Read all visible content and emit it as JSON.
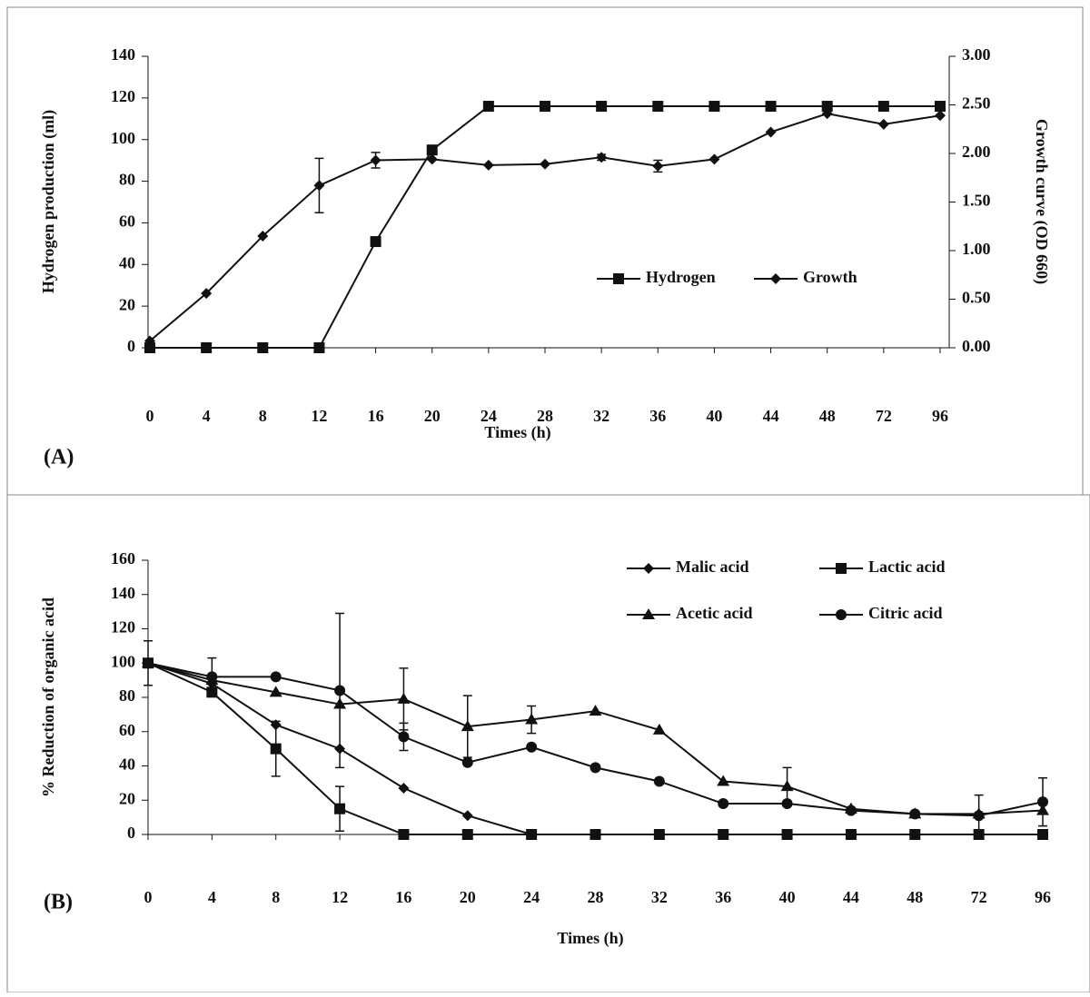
{
  "chart_data": [
    {
      "type": "line",
      "panel_label": "(A)",
      "x_label": "Times (h)",
      "y_label": "Hydrogen production (ml)",
      "y2_label": "Growth curve (OD 660)",
      "categories": [
        "0",
        "4",
        "8",
        "12",
        "16",
        "20",
        "24",
        "28",
        "32",
        "36",
        "40",
        "44",
        "48",
        "72",
        "96"
      ],
      "ylim": [
        0,
        140
      ],
      "yticks": [
        0,
        20,
        40,
        60,
        80,
        100,
        120,
        140
      ],
      "y2lim": [
        0,
        3
      ],
      "y2ticks": [
        {
          "value": 0,
          "label": "0.00"
        },
        {
          "value": 0.5,
          "label": "0.50"
        },
        {
          "value": 1,
          "label": "1.00"
        },
        {
          "value": 1.5,
          "label": "1.50"
        },
        {
          "value": 2,
          "label": "2.00"
        },
        {
          "value": 2.5,
          "label": "2.50"
        },
        {
          "value": 3,
          "label": "3.00"
        }
      ],
      "legend": "lower right",
      "series": [
        {
          "name": "Hydrogen",
          "color": "#111111",
          "marker": "square",
          "values": [
            0,
            0,
            0,
            0,
            51,
            95,
            116,
            116,
            116,
            116,
            116,
            116,
            116,
            116,
            116
          ]
        },
        {
          "name": "Growth",
          "color": "#111111",
          "marker": "diamond",
          "axis": "y2",
          "values": [
            0.07,
            0.56,
            1.15,
            1.67,
            1.93,
            1.94,
            1.88,
            1.89,
            1.96,
            1.87,
            1.94,
            2.22,
            2.41,
            2.3,
            2.39
          ],
          "errors": [
            null,
            null,
            null,
            0.28,
            0.08,
            null,
            null,
            null,
            0.03,
            0.06,
            null,
            null,
            null,
            null,
            null
          ]
        }
      ]
    },
    {
      "type": "line",
      "panel_label": "(B)",
      "x_label": "Times (h)",
      "y_label": "% Reduction of organic acid",
      "categories": [
        "0",
        "4",
        "8",
        "12",
        "16",
        "20",
        "24",
        "28",
        "32",
        "36",
        "40",
        "44",
        "48",
        "72",
        "96"
      ],
      "ylim": [
        0,
        160
      ],
      "yticks": [
        0,
        20,
        40,
        60,
        80,
        100,
        120,
        140,
        160
      ],
      "legend": "upper right",
      "series": [
        {
          "name": "Malic acid",
          "color": "#111111",
          "marker": "diamond",
          "values": [
            100,
            88,
            64,
            50,
            27,
            11,
            0,
            0,
            0,
            0,
            0,
            0,
            0,
            0,
            0
          ]
        },
        {
          "name": "Lactic acid",
          "color": "#111111",
          "marker": "square",
          "values": [
            100,
            83,
            50,
            15,
            0,
            0,
            0,
            0,
            0,
            0,
            0,
            0,
            0,
            0,
            0
          ],
          "errors": [
            null,
            null,
            16,
            13,
            null,
            null,
            null,
            null,
            null,
            null,
            null,
            null,
            null,
            null,
            null
          ]
        },
        {
          "name": "Acetic acid",
          "color": "#111111",
          "marker": "triangle",
          "values": [
            100,
            90,
            83,
            76,
            79,
            63,
            67,
            72,
            61,
            31,
            28,
            15,
            12,
            12,
            14
          ],
          "errors": [
            13,
            null,
            null,
            null,
            18,
            18,
            8,
            null,
            null,
            null,
            11,
            null,
            null,
            11,
            null
          ]
        },
        {
          "name": "Citric acid",
          "color": "#111111",
          "marker": "circle",
          "values": [
            100,
            92,
            92,
            84,
            57,
            42,
            51,
            39,
            31,
            18,
            18,
            14,
            12,
            11,
            19
          ],
          "errors": [
            null,
            11,
            null,
            45,
            8,
            null,
            null,
            null,
            null,
            null,
            null,
            null,
            null,
            null,
            14
          ]
        }
      ]
    }
  ]
}
